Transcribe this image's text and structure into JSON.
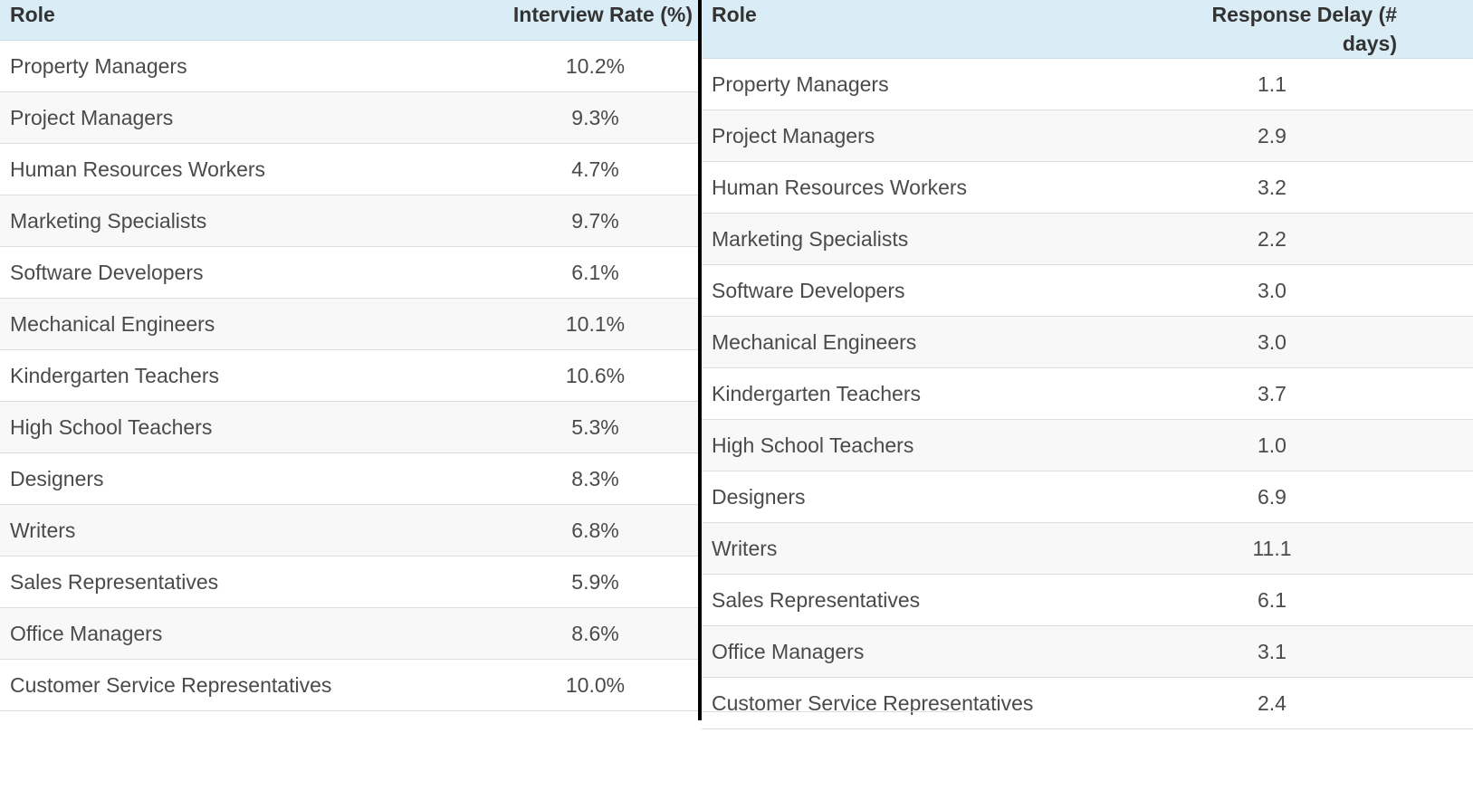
{
  "chart_data": [
    {
      "type": "table",
      "columns": [
        "Role",
        "Interview Rate (%)"
      ],
      "rows": [
        {
          "role": "Property Managers",
          "value": "10.2%"
        },
        {
          "role": "Project Managers",
          "value": "9.3%"
        },
        {
          "role": "Human Resources Workers",
          "value": "4.7%"
        },
        {
          "role": "Marketing Specialists",
          "value": "9.7%"
        },
        {
          "role": "Software Developers",
          "value": "6.1%"
        },
        {
          "role": "Mechanical Engineers",
          "value": "10.1%"
        },
        {
          "role": "Kindergarten Teachers",
          "value": "10.6%"
        },
        {
          "role": "High School Teachers",
          "value": "5.3%"
        },
        {
          "role": "Designers",
          "value": "8.3%"
        },
        {
          "role": "Writers",
          "value": "6.8%"
        },
        {
          "role": "Sales Representatives",
          "value": "5.9%"
        },
        {
          "role": "Office Managers",
          "value": "8.6%"
        },
        {
          "role": "Customer Service Representatives",
          "value": "10.0%"
        }
      ]
    },
    {
      "type": "table",
      "columns": [
        "Role",
        "Response Delay (# days)"
      ],
      "rows": [
        {
          "role": "Property Managers",
          "value": "1.1"
        },
        {
          "role": "Project Managers",
          "value": "2.9"
        },
        {
          "role": "Human Resources Workers",
          "value": "3.2"
        },
        {
          "role": "Marketing Specialists",
          "value": "2.2"
        },
        {
          "role": "Software Developers",
          "value": "3.0"
        },
        {
          "role": "Mechanical Engineers",
          "value": "3.0"
        },
        {
          "role": "Kindergarten Teachers",
          "value": "3.7"
        },
        {
          "role": "High School Teachers",
          "value": "1.0"
        },
        {
          "role": "Designers",
          "value": "6.9"
        },
        {
          "role": "Writers",
          "value": "11.1"
        },
        {
          "role": "Sales Representatives",
          "value": "6.1"
        },
        {
          "role": "Office Managers",
          "value": "3.1"
        },
        {
          "role": "Customer Service Representatives",
          "value": "2.4"
        }
      ]
    }
  ],
  "colors": {
    "header_background": "#daedf7",
    "divider": "#000000",
    "row_stripe": "#f8f8f8"
  }
}
